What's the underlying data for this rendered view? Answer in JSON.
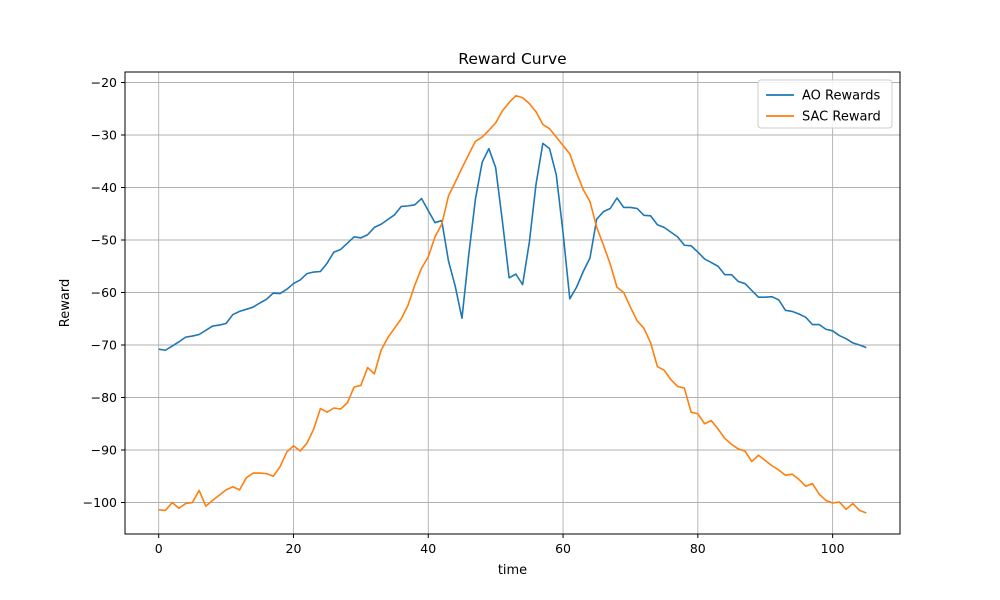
{
  "chart_data": {
    "type": "line",
    "title": "Reward Curve",
    "xlabel": "time",
    "ylabel": "Reward",
    "xlim": [
      -5,
      110
    ],
    "ylim": [
      -106,
      -18
    ],
    "xticks": [
      0,
      20,
      40,
      60,
      80,
      100
    ],
    "yticks": [
      -20,
      -30,
      -40,
      -50,
      -60,
      -70,
      -80,
      -90,
      -100
    ],
    "grid": true,
    "legend_position": "top-right",
    "series": [
      {
        "name": "AO Rewards",
        "color": "#1f77b4",
        "x": [
          0,
          1,
          2,
          3,
          4,
          5,
          6,
          7,
          8,
          9,
          10,
          11,
          12,
          13,
          14,
          15,
          16,
          17,
          18,
          19,
          20,
          21,
          22,
          23,
          24,
          25,
          26,
          27,
          28,
          29,
          30,
          31,
          32,
          33,
          34,
          35,
          36,
          37,
          38,
          39,
          40,
          41,
          42,
          43,
          44,
          45,
          46,
          47,
          48,
          49,
          50,
          51,
          52,
          53,
          54,
          55,
          56,
          57,
          58,
          59,
          60,
          61,
          62,
          63,
          64,
          65,
          66,
          67,
          68,
          69,
          70,
          71,
          72,
          73,
          74,
          75,
          76,
          77,
          78,
          79,
          80,
          81,
          82,
          83,
          84,
          85,
          86,
          87,
          88,
          89,
          90,
          91,
          92,
          93,
          94,
          95,
          96,
          97,
          98,
          99,
          100,
          101,
          102,
          103,
          104,
          105
        ],
        "y": [
          -70.8,
          -71.0,
          -70.2,
          -69.4,
          -68.5,
          -68.3,
          -68.0,
          -67.2,
          -66.4,
          -66.2,
          -65.9,
          -64.2,
          -63.6,
          -63.2,
          -62.8,
          -62.0,
          -61.3,
          -60.1,
          -60.2,
          -59.4,
          -58.3,
          -57.6,
          -56.4,
          -56.1,
          -56.0,
          -54.4,
          -52.3,
          -51.8,
          -50.6,
          -49.4,
          -49.6,
          -49.0,
          -47.6,
          -47.0,
          -46.1,
          -45.2,
          -43.6,
          -43.5,
          -43.3,
          -42.1,
          -44.4,
          -46.7,
          -46.3,
          -54.0,
          -58.8,
          -64.9,
          -52.9,
          -42.2,
          -35.2,
          -32.6,
          -36.2,
          -46.4,
          -57.2,
          -56.5,
          -58.5,
          -50.4,
          -39.3,
          -31.6,
          -32.6,
          -37.6,
          -48.6,
          -61.2,
          -59.0,
          -56.0,
          -53.4,
          -46.0,
          -44.6,
          -44.0,
          -42.0,
          -43.8,
          -43.8,
          -44.0,
          -45.3,
          -45.4,
          -47.1,
          -47.6,
          -48.5,
          -49.4,
          -51.0,
          -51.1,
          -52.3,
          -53.6,
          -54.3,
          -55.0,
          -56.6,
          -56.6,
          -57.9,
          -58.3,
          -59.6,
          -60.9,
          -60.9,
          -60.8,
          -61.4,
          -63.4,
          -63.6,
          -64.1,
          -64.7,
          -66.1,
          -66.1,
          -67.0,
          -67.3,
          -68.2,
          -68.8,
          -69.6,
          -70.0,
          -70.5
        ]
      },
      {
        "name": "SAC Reward",
        "color": "#ff7f0e",
        "x": [
          0,
          1,
          2,
          3,
          4,
          5,
          6,
          7,
          8,
          9,
          10,
          11,
          12,
          13,
          14,
          15,
          16,
          17,
          18,
          19,
          20,
          21,
          22,
          23,
          24,
          25,
          26,
          27,
          28,
          29,
          30,
          31,
          32,
          33,
          34,
          35,
          36,
          37,
          38,
          39,
          40,
          41,
          42,
          43,
          44,
          45,
          46,
          47,
          48,
          49,
          50,
          51,
          52,
          53,
          54,
          55,
          56,
          57,
          58,
          59,
          60,
          61,
          62,
          63,
          64,
          65,
          66,
          67,
          68,
          69,
          70,
          71,
          72,
          73,
          74,
          75,
          76,
          77,
          78,
          79,
          80,
          81,
          82,
          83,
          84,
          85,
          86,
          87,
          88,
          89,
          90,
          91,
          92,
          93,
          94,
          95,
          96,
          97,
          98,
          99,
          100,
          101,
          102,
          103,
          104,
          105
        ],
        "y": [
          -101.4,
          -101.5,
          -100.0,
          -101.1,
          -100.2,
          -100.0,
          -97.7,
          -100.7,
          -99.6,
          -98.6,
          -97.6,
          -97.0,
          -97.6,
          -95.3,
          -94.4,
          -94.4,
          -94.5,
          -95.0,
          -93.2,
          -90.4,
          -89.2,
          -90.2,
          -88.7,
          -86.0,
          -82.1,
          -82.8,
          -82.0,
          -82.2,
          -81.0,
          -78.0,
          -77.7,
          -74.3,
          -75.5,
          -71.0,
          -68.6,
          -66.8,
          -65.0,
          -62.4,
          -58.6,
          -55.4,
          -53.2,
          -49.4,
          -47.0,
          -41.6,
          -39.0,
          -36.3,
          -33.7,
          -31.2,
          -30.4,
          -29.1,
          -27.7,
          -25.4,
          -23.8,
          -22.5,
          -22.9,
          -24.0,
          -25.6,
          -28.0,
          -28.8,
          -30.4,
          -32.0,
          -33.6,
          -37.2,
          -40.4,
          -42.7,
          -47.6,
          -51.0,
          -54.6,
          -59.0,
          -60.0,
          -62.8,
          -65.4,
          -66.8,
          -69.6,
          -74.1,
          -74.8,
          -76.6,
          -77.9,
          -78.2,
          -82.8,
          -83.1,
          -85.0,
          -84.4,
          -86.0,
          -87.8,
          -88.9,
          -89.8,
          -90.2,
          -92.2,
          -91.0,
          -92.0,
          -93.0,
          -93.8,
          -94.8,
          -94.6,
          -95.6,
          -96.9,
          -96.4,
          -98.4,
          -99.6,
          -100.1,
          -99.9,
          -101.3,
          -100.2,
          -101.5,
          -102.0
        ]
      }
    ]
  }
}
